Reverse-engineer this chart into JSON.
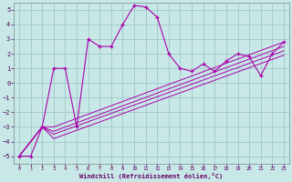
{
  "background_color": "#c8e8e8",
  "line_color": "#aa00aa",
  "marker_color": "#aa00aa",
  "grid_color": "#9bbfbf",
  "xlabel": "Windchill (Refroidissement éolien,°C)",
  "xlabel_color": "#660066",
  "ylabel_color": "#550055",
  "tick_color": "#550055",
  "xlim": [
    -0.5,
    23.5
  ],
  "ylim": [
    -5.5,
    5.5
  ],
  "xticks": [
    0,
    1,
    2,
    3,
    4,
    5,
    6,
    7,
    8,
    9,
    10,
    11,
    12,
    13,
    14,
    15,
    16,
    17,
    18,
    19,
    20,
    21,
    22,
    23
  ],
  "yticks": [
    -5,
    -4,
    -3,
    -2,
    -1,
    0,
    1,
    2,
    3,
    4,
    5
  ],
  "series_main_x": [
    0,
    1,
    2,
    3,
    4,
    5,
    6,
    7,
    8,
    9,
    10,
    11,
    12,
    13,
    14,
    15,
    16,
    17,
    18,
    19,
    20,
    21,
    22,
    23
  ],
  "series_main_y": [
    -5,
    -5,
    -3,
    1,
    1,
    -3,
    3,
    2.5,
    2.5,
    4,
    5.3,
    5.2,
    4.5,
    2,
    1,
    0.8,
    1.3,
    0.8,
    1.5,
    2.0,
    1.8,
    0.5,
    2.0,
    2.8
  ],
  "line2_x": [
    0,
    2,
    3,
    23
  ],
  "line2_y": [
    -5,
    -3,
    -3,
    2.8
  ],
  "line3_x": [
    0,
    2,
    3,
    23
  ],
  "line3_y": [
    -5,
    -3,
    -3.3,
    2.5
  ],
  "line4_x": [
    0,
    2,
    3,
    23
  ],
  "line4_y": [
    -5,
    -3,
    -3.5,
    2.2
  ],
  "line5_x": [
    0,
    2,
    3,
    23
  ],
  "line5_y": [
    -5,
    -3,
    -3.8,
    1.9
  ],
  "figwidth": 3.2,
  "figheight": 2.0,
  "dpi": 100
}
